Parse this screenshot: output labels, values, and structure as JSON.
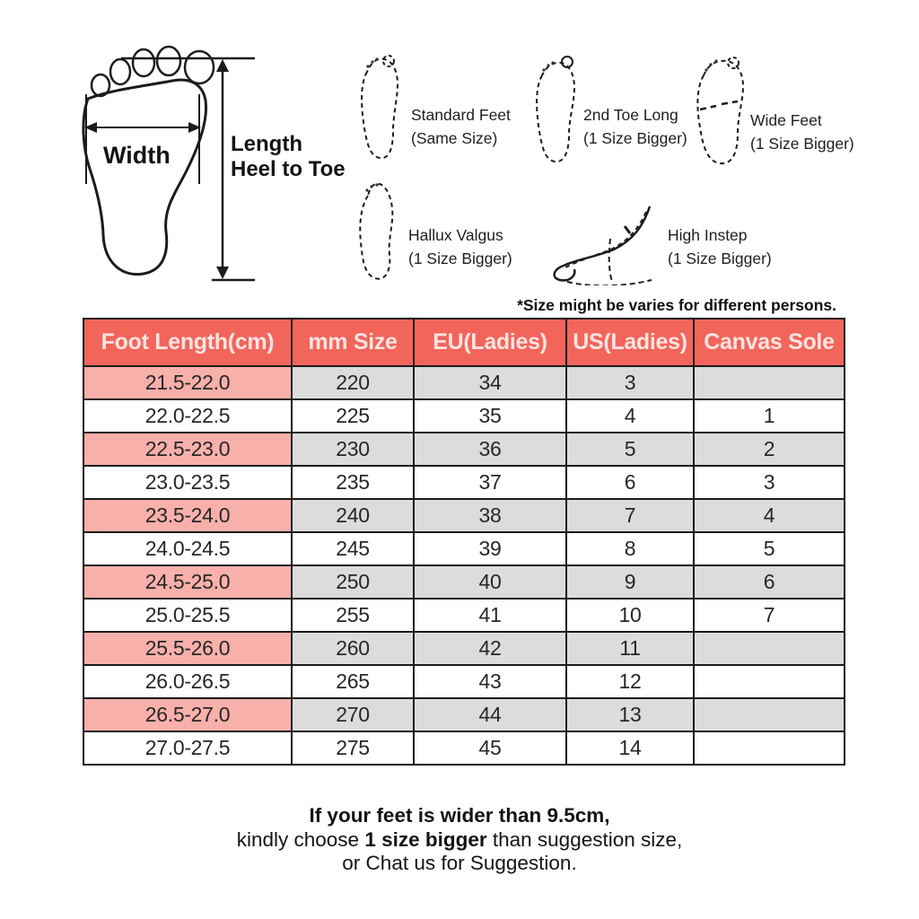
{
  "measurement": {
    "width_label": "Width",
    "length_label": "Length",
    "length_sublabel": "Heel to Toe"
  },
  "foot_types": [
    {
      "name": "Standard Feet",
      "note": "(Same Size)"
    },
    {
      "name": "2nd Toe Long",
      "note": "(1 Size Bigger)"
    },
    {
      "name": "Wide Feet",
      "note": "(1 Size Bigger)"
    },
    {
      "name": "Hallux Valgus",
      "note": "(1 Size Bigger)"
    },
    {
      "name": "High Instep",
      "note": "(1 Size Bigger)"
    }
  ],
  "size_note": "*Size might be varies for different persons.",
  "table": {
    "headers": [
      "Foot Length(cm)",
      "mm Size",
      "EU(Ladies)",
      "US(Ladies)",
      "Canvas Sole"
    ],
    "rows": [
      [
        "21.5-22.0",
        "220",
        "34",
        "3",
        ""
      ],
      [
        "22.0-22.5",
        "225",
        "35",
        "4",
        "1"
      ],
      [
        "22.5-23.0",
        "230",
        "36",
        "5",
        "2"
      ],
      [
        "23.0-23.5",
        "235",
        "37",
        "6",
        "3"
      ],
      [
        "23.5-24.0",
        "240",
        "38",
        "7",
        "4"
      ],
      [
        "24.0-24.5",
        "245",
        "39",
        "8",
        "5"
      ],
      [
        "24.5-25.0",
        "250",
        "40",
        "9",
        "6"
      ],
      [
        "25.0-25.5",
        "255",
        "41",
        "10",
        "7"
      ],
      [
        "25.5-26.0",
        "260",
        "42",
        "11",
        ""
      ],
      [
        "26.0-26.5",
        "265",
        "43",
        "12",
        ""
      ],
      [
        "26.5-27.0",
        "270",
        "44",
        "13",
        ""
      ],
      [
        "27.0-27.5",
        "275",
        "45",
        "14",
        ""
      ]
    ]
  },
  "footer": {
    "line1": "If your feet is wider than 9.5cm,",
    "line2_pre": "kindly choose ",
    "line2_bold": "1 size bigger",
    "line2_post": " than suggestion size,",
    "line3": "or Chat us for Suggestion."
  },
  "colors": {
    "header_bg": "#f2655b",
    "header_text": "#ffe4e1",
    "row_pink": "#f8b0aa",
    "row_gray": "#dcdcdc",
    "row_white": "#ffffff",
    "table_border": "#1a1a1a"
  }
}
